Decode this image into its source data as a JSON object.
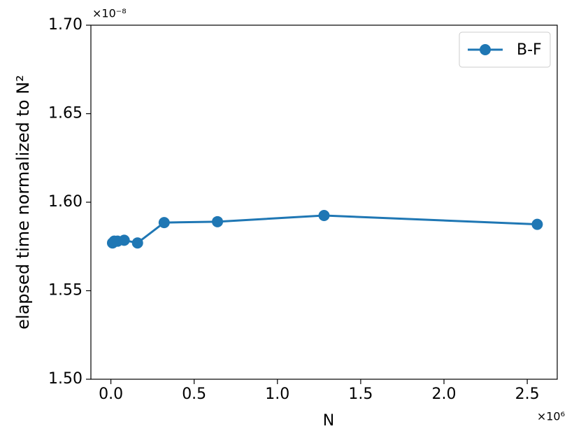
{
  "chart_data": {
    "type": "line",
    "x_label": "N",
    "y_label": "elapsed time normalized to N²",
    "x_offset_label": "×10⁶",
    "y_offset_label": "×10⁻⁸",
    "x": [
      0.01,
      0.02,
      0.04,
      0.08,
      0.16,
      0.32,
      0.64,
      1.28,
      2.56
    ],
    "series": [
      {
        "name": "B-F",
        "color": "#1f77b4",
        "values": [
          1.577,
          1.578,
          1.578,
          1.5785,
          1.577,
          1.5885,
          1.589,
          1.5925,
          1.5875
        ]
      }
    ],
    "xlim": [
      -0.12,
      2.68
    ],
    "xticks": [
      {
        "value": 0,
        "label": "0.0"
      },
      0.5,
      {
        "value": 1,
        "label": "1.0"
      },
      1.5,
      {
        "value": 2,
        "label": "2.0"
      },
      2.5
    ],
    "ylim": [
      1.5,
      1.7
    ],
    "yticks": [
      {
        "value": 1.5,
        "label": "1.50"
      },
      1.55,
      {
        "value": 1.6,
        "label": "1.60"
      },
      1.65,
      {
        "value": 1.7,
        "label": "1.70"
      }
    ],
    "legend": "upper right",
    "grid": false
  }
}
